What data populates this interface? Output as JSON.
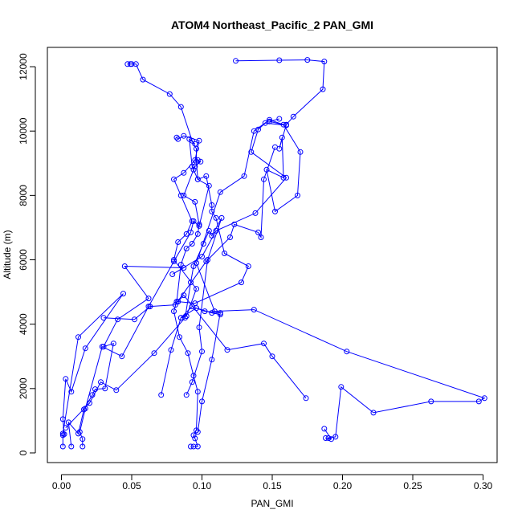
{
  "chart_data": {
    "type": "line",
    "title": "ATOM4 Northeast_Pacific_2 PAN_GMI",
    "xlabel": "PAN_GMI",
    "ylabel": "Altitude (m)",
    "xlim": [
      -0.01,
      0.31
    ],
    "ylim": [
      -300,
      12600
    ],
    "xticks": [
      0.0,
      0.05,
      0.1,
      0.15,
      0.2,
      0.25,
      0.3
    ],
    "xtick_labels": [
      "0.00",
      "0.05",
      "0.10",
      "0.15",
      "0.20",
      "0.25",
      "0.30"
    ],
    "yticks": [
      0,
      2000,
      4000,
      6000,
      8000,
      10000,
      12000
    ],
    "ytick_labels": [
      "0",
      "2000",
      "4000",
      "6000",
      "8000",
      "10000",
      "12000"
    ],
    "grid": false,
    "series_color": "#0000ff",
    "marker": "open-circle",
    "series": [
      {
        "points": [
          [
            0.001,
            200
          ],
          [
            0.001,
            550
          ],
          [
            0.002,
            580
          ],
          [
            0.001,
            1050
          ],
          [
            0.003,
            2300
          ],
          [
            0.007,
            1900
          ],
          [
            0.017,
            3250
          ],
          [
            0.044,
            4950
          ],
          [
            0.012,
            3600
          ],
          [
            0.001,
            600
          ]
        ]
      },
      {
        "points": [
          [
            0.007,
            200
          ],
          [
            0.005,
            950
          ],
          [
            0.012,
            600
          ],
          [
            0.016,
            1350
          ],
          [
            0.022,
            1800
          ],
          [
            0.024,
            1980
          ],
          [
            0.031,
            2000
          ],
          [
            0.037,
            3400
          ],
          [
            0.03,
            3300
          ],
          [
            0.04,
            4150
          ],
          [
            0.062,
            4800
          ],
          [
            0.045,
            5800
          ],
          [
            0.087,
            5750
          ],
          [
            0.079,
            5550
          ],
          [
            0.1,
            6100
          ],
          [
            0.11,
            6900
          ],
          [
            0.138,
            7450
          ],
          [
            0.16,
            8550
          ],
          [
            0.135,
            9350
          ],
          [
            0.14,
            10050
          ],
          [
            0.145,
            10250
          ],
          [
            0.16,
            10180
          ],
          [
            0.148,
            10300
          ],
          [
            0.155,
            10380
          ]
        ]
      },
      {
        "points": [
          [
            0.015,
            200
          ],
          [
            0.015,
            430
          ],
          [
            0.013,
            650
          ],
          [
            0.017,
            1380
          ],
          [
            0.029,
            3300
          ],
          [
            0.043,
            3000
          ],
          [
            0.062,
            4550
          ],
          [
            0.08,
            5950
          ],
          [
            0.092,
            6850
          ],
          [
            0.094,
            7200
          ],
          [
            0.098,
            7050
          ],
          [
            0.105,
            8300
          ],
          [
            0.097,
            8500
          ],
          [
            0.093,
            8900
          ],
          [
            0.091,
            9750
          ],
          [
            0.095,
            9600
          ]
        ]
      },
      {
        "points": [
          [
            0.05,
            12080
          ],
          [
            0.047,
            12080
          ],
          [
            0.049,
            12080
          ],
          [
            0.053,
            12080
          ],
          [
            0.058,
            11600
          ],
          [
            0.077,
            11150
          ],
          [
            0.085,
            10750
          ],
          [
            0.093,
            9700
          ],
          [
            0.096,
            9450
          ],
          [
            0.096,
            9050
          ],
          [
            0.097,
            8500
          ],
          [
            0.103,
            8600
          ],
          [
            0.107,
            7700
          ],
          [
            0.107,
            7500
          ],
          [
            0.11,
            7300
          ],
          [
            0.116,
            6200
          ],
          [
            0.133,
            5800
          ],
          [
            0.128,
            5300
          ],
          [
            0.095,
            4650
          ],
          [
            0.083,
            4700
          ],
          [
            0.087,
            4900
          ],
          [
            0.118,
            3200
          ],
          [
            0.144,
            3400
          ],
          [
            0.15,
            3000
          ],
          [
            0.174,
            1700
          ]
        ]
      },
      {
        "points": [
          [
            0.124,
            12180
          ],
          [
            0.155,
            12200
          ],
          [
            0.175,
            12210
          ],
          [
            0.187,
            12160
          ],
          [
            0.186,
            11300
          ],
          [
            0.165,
            10450
          ],
          [
            0.16,
            10200
          ],
          [
            0.155,
            9450
          ],
          [
            0.157,
            9800
          ],
          [
            0.158,
            8550
          ],
          [
            0.146,
            8800
          ],
          [
            0.152,
            7500
          ],
          [
            0.168,
            8000
          ],
          [
            0.17,
            9350
          ],
          [
            0.158,
            10200
          ],
          [
            0.148,
            10350
          ],
          [
            0.137,
            10000
          ],
          [
            0.13,
            8600
          ],
          [
            0.113,
            8100
          ],
          [
            0.096,
            5900
          ],
          [
            0.109,
            4400
          ],
          [
            0.137,
            4450
          ],
          [
            0.203,
            3150
          ],
          [
            0.301,
            1700
          ],
          [
            0.297,
            1600
          ],
          [
            0.263,
            1600
          ],
          [
            0.222,
            1250
          ],
          [
            0.199,
            2050
          ],
          [
            0.195,
            500
          ],
          [
            0.19,
            460
          ],
          [
            0.188,
            460
          ],
          [
            0.192,
            430
          ],
          [
            0.187,
            750
          ]
        ]
      },
      {
        "points": [
          [
            0.092,
            200
          ],
          [
            0.094,
            200
          ],
          [
            0.097,
            200
          ],
          [
            0.095,
            450
          ],
          [
            0.094,
            550
          ],
          [
            0.096,
            700
          ],
          [
            0.097,
            1900
          ],
          [
            0.094,
            2400
          ],
          [
            0.09,
            3100
          ],
          [
            0.084,
            3600
          ],
          [
            0.08,
            4400
          ],
          [
            0.082,
            4700
          ],
          [
            0.085,
            5850
          ],
          [
            0.089,
            6350
          ],
          [
            0.093,
            6500
          ],
          [
            0.097,
            6800
          ],
          [
            0.098,
            7100
          ],
          [
            0.095,
            7800
          ],
          [
            0.087,
            8000
          ],
          [
            0.094,
            8800
          ],
          [
            0.095,
            8900
          ],
          [
            0.099,
            9050
          ],
          [
            0.097,
            9100
          ]
        ]
      },
      {
        "points": [
          [
            0.071,
            1800
          ],
          [
            0.078,
            3200
          ],
          [
            0.085,
            4200
          ],
          [
            0.093,
            4550
          ],
          [
            0.102,
            4400
          ],
          [
            0.113,
            4350
          ],
          [
            0.107,
            2900
          ],
          [
            0.1,
            1600
          ],
          [
            0.097,
            650
          ]
        ]
      },
      {
        "points": [
          [
            0.03,
            4200
          ],
          [
            0.052,
            4150
          ],
          [
            0.063,
            4550
          ],
          [
            0.081,
            4600
          ],
          [
            0.103,
            5950
          ],
          [
            0.12,
            6700
          ],
          [
            0.123,
            7100
          ],
          [
            0.14,
            6850
          ],
          [
            0.142,
            6700
          ],
          [
            0.144,
            8500
          ],
          [
            0.152,
            9500
          ]
        ]
      },
      {
        "points": [
          [
            0.003,
            780
          ],
          [
            0.02,
            1550
          ],
          [
            0.028,
            2200
          ],
          [
            0.039,
            1950
          ],
          [
            0.066,
            3100
          ],
          [
            0.088,
            4200
          ],
          [
            0.092,
            5300
          ],
          [
            0.094,
            5800
          ],
          [
            0.101,
            6500
          ],
          [
            0.105,
            6900
          ],
          [
            0.107,
            6750
          ],
          [
            0.114,
            7300
          ],
          [
            0.104,
            6000
          ],
          [
            0.098,
            3900
          ],
          [
            0.1,
            3150
          ],
          [
            0.093,
            2200
          ],
          [
            0.089,
            1800
          ]
        ]
      },
      {
        "points": [
          [
            0.082,
            9800
          ],
          [
            0.083,
            9750
          ],
          [
            0.087,
            9850
          ],
          [
            0.098,
            9700
          ],
          [
            0.095,
            9100
          ],
          [
            0.087,
            8700
          ],
          [
            0.08,
            8500
          ],
          [
            0.085,
            8000
          ],
          [
            0.093,
            7200
          ],
          [
            0.089,
            6800
          ],
          [
            0.083,
            6550
          ],
          [
            0.08,
            6000
          ],
          [
            0.096,
            5100
          ],
          [
            0.089,
            4250
          ],
          [
            0.085,
            4200
          ],
          [
            0.096,
            4500
          ],
          [
            0.107,
            4350
          ],
          [
            0.113,
            4300
          ]
        ]
      }
    ]
  }
}
